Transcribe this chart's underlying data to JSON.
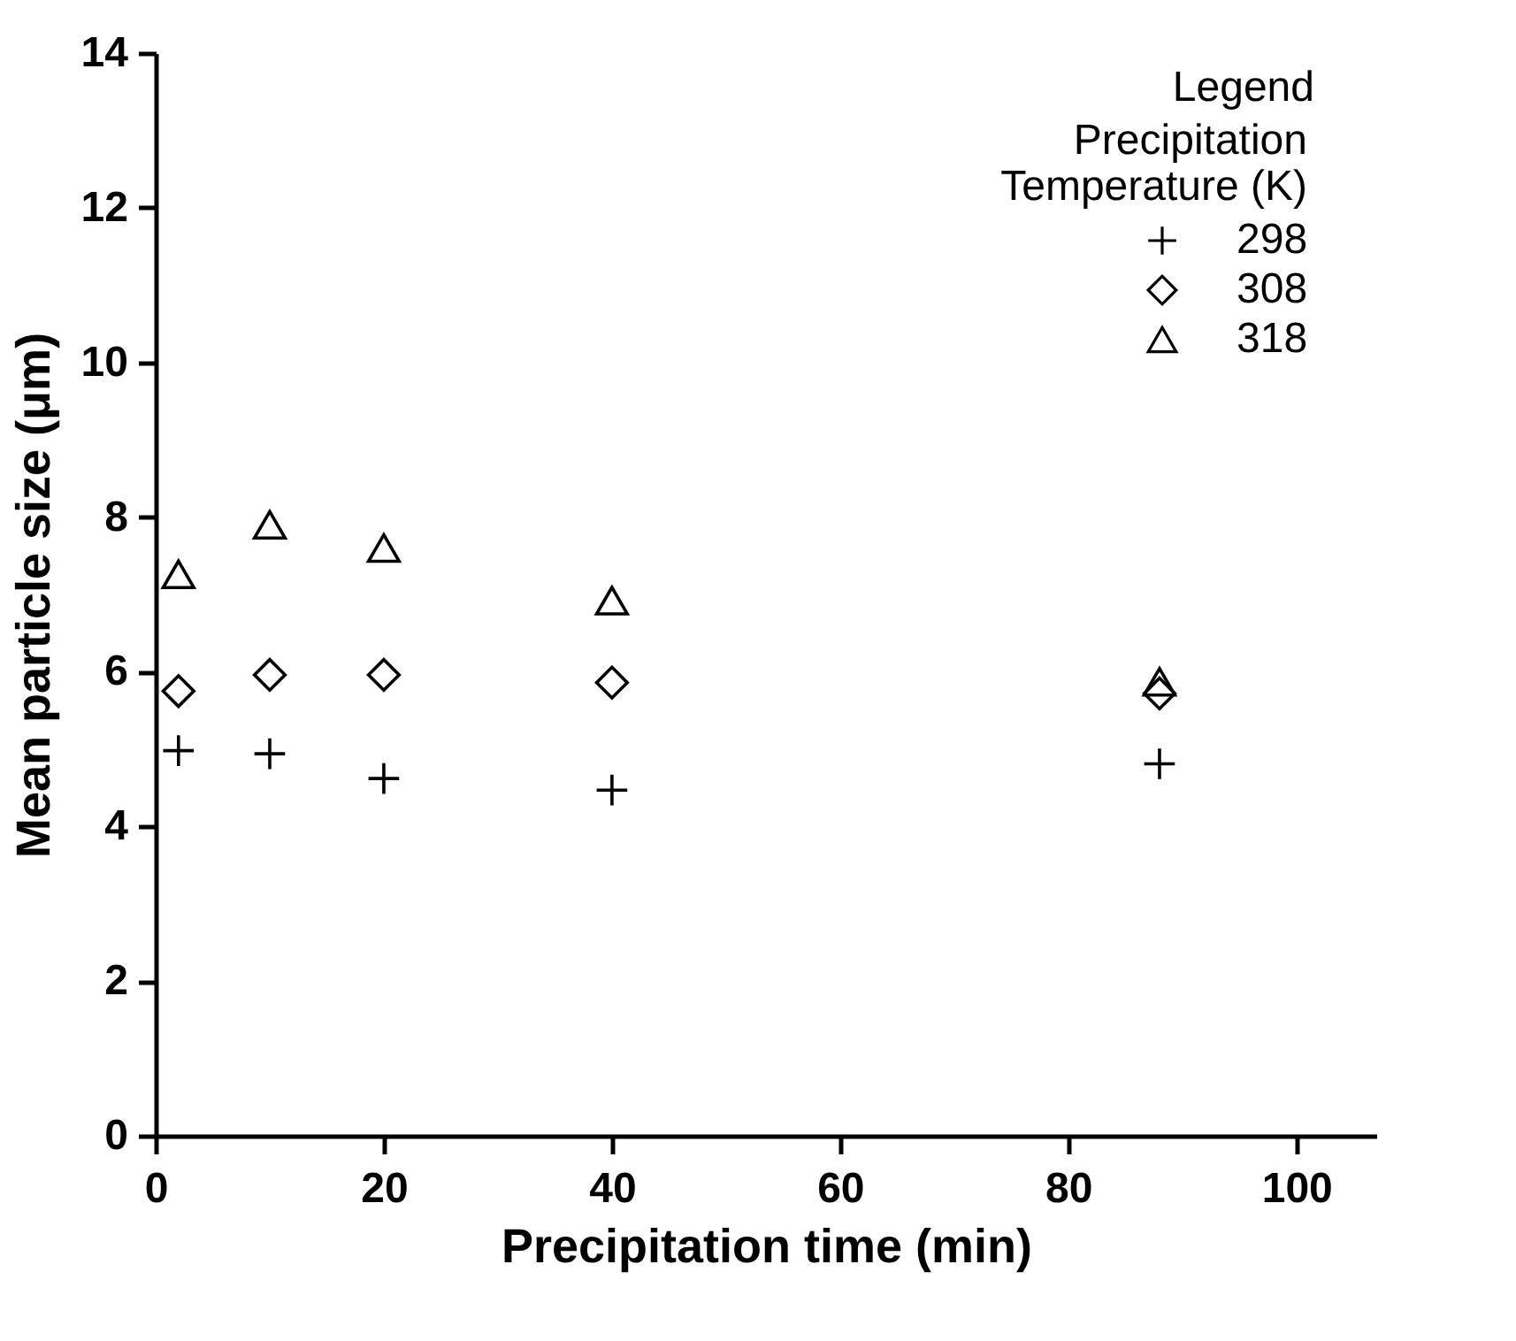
{
  "chart_data": {
    "type": "scatter",
    "xlabel": "Precipitation time (min)",
    "ylabel": "Mean particle size (μm)",
    "legend_title": "Precipitation\nTemperature (K)",
    "annotations": [
      "Legend"
    ],
    "x": [
      2,
      10,
      20,
      40,
      88
    ],
    "series": [
      {
        "name": "298",
        "color": "#000000",
        "marker": "cross",
        "values": [
          4.98,
          4.94,
          4.62,
          4.47,
          4.81
        ]
      },
      {
        "name": "308",
        "color": "#000000",
        "marker": "diamond",
        "values": [
          5.75,
          5.96,
          5.96,
          5.86,
          5.72
        ]
      },
      {
        "name": "318",
        "color": "#000000",
        "marker": "triangle",
        "values": [
          7.26,
          7.9,
          7.6,
          6.92,
          5.87
        ]
      }
    ],
    "xlim": [
      0,
      107
    ],
    "xticks": [
      0,
      20,
      40,
      60,
      80,
      100
    ],
    "ylim": [
      0,
      14
    ],
    "yticks": [
      0,
      2,
      4,
      6,
      8,
      10,
      12,
      14
    ],
    "grid": false,
    "legend": "top right"
  }
}
